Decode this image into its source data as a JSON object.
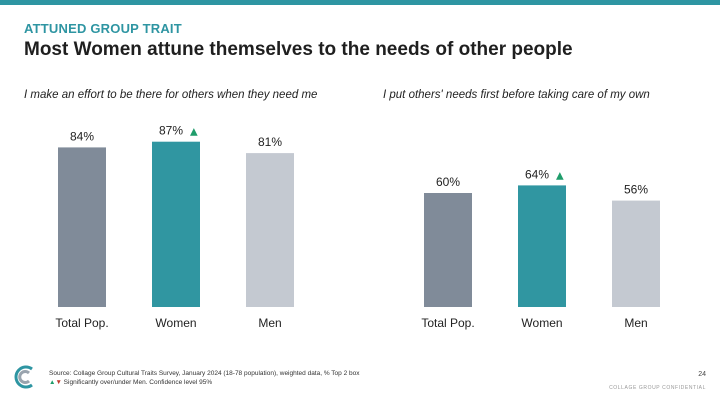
{
  "header": {
    "eyebrow": "ATTUNED GROUP TRAIT",
    "title": "Most Women attune themselves to the needs of other people"
  },
  "colors": {
    "accent": "#2e95a2",
    "total": "#808b99",
    "women": "#3096a1",
    "men": "#c4c9d1",
    "up_arrow": "#1f9d6b",
    "down_arrow": "#c0392b"
  },
  "chart_data": [
    {
      "type": "bar",
      "title": "I make an effort to be there for others when they need me",
      "categories": [
        "Total Pop.",
        "Women",
        "Men"
      ],
      "values": [
        84,
        87,
        81
      ],
      "labels": [
        "84%",
        "87%",
        "81%"
      ],
      "significant_up": [
        false,
        true,
        false
      ],
      "ylim": [
        0,
        100
      ]
    },
    {
      "type": "bar",
      "title": "I put others' needs first before taking care of my own",
      "categories": [
        "Total Pop.",
        "Women",
        "Men"
      ],
      "values": [
        60,
        64,
        56
      ],
      "labels": [
        "60%",
        "64%",
        "56%"
      ],
      "significant_up": [
        false,
        true,
        false
      ],
      "ylim": [
        0,
        100
      ]
    }
  ],
  "footer": {
    "source": "Source: Collage Group Cultural Traits Survey, January 2024 (18-78 population), weighted data, % Top 2 box",
    "note_up": "▲",
    "note_down": "▼",
    "note_text": " Significantly over/under Men. Confidence level 95%",
    "page_number": "24",
    "confidential": "COLLAGE GROUP CONFIDENTIAL"
  }
}
